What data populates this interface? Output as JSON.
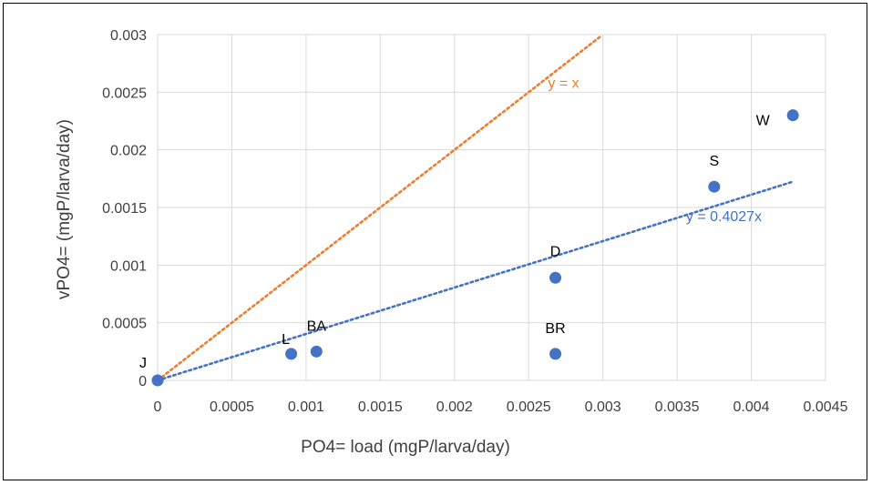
{
  "colors": {
    "series_fill": "#4472C4",
    "trend_color": "#4472C4",
    "identity_color": "#ED7D31",
    "grid": "#D9D9D9",
    "text": "#404040"
  },
  "chart_data": {
    "type": "scatter",
    "xlabel": "PO4= load (mgP/larva/day)",
    "ylabel": "vPO4= (mgP/larva/day)",
    "xlim": [
      0,
      0.0045
    ],
    "ylim": [
      0,
      0.003
    ],
    "x_ticks": [
      "0",
      "0.0005",
      "0.001",
      "0.0015",
      "0.002",
      "0.0025",
      "0.003",
      "0.0035",
      "0.004",
      "0.0045"
    ],
    "y_ticks": [
      "0",
      "0.0005",
      "0.001",
      "0.0015",
      "0.002",
      "0.0025",
      "0.003"
    ],
    "grid": true,
    "points": [
      {
        "label": "J",
        "x": 0.0,
        "y": 0.0
      },
      {
        "label": "L",
        "x": 0.0009,
        "y": 0.00023
      },
      {
        "label": "BA",
        "x": 0.00107,
        "y": 0.00025
      },
      {
        "label": "BR",
        "x": 0.00268,
        "y": 0.00023
      },
      {
        "label": "D",
        "x": 0.00268,
        "y": 0.00089
      },
      {
        "label": "S",
        "x": 0.00375,
        "y": 0.00168
      },
      {
        "label": "W",
        "x": 0.00428,
        "y": 0.0023
      }
    ],
    "trendlines": [
      {
        "equation": "y = 0.4027x",
        "slope": 0.4027,
        "x_range": [
          0,
          0.00428
        ],
        "style": "dotted"
      },
      {
        "equation": "y = x",
        "slope": 1,
        "x_range": [
          0,
          0.00298
        ],
        "style": "dotted"
      }
    ]
  }
}
